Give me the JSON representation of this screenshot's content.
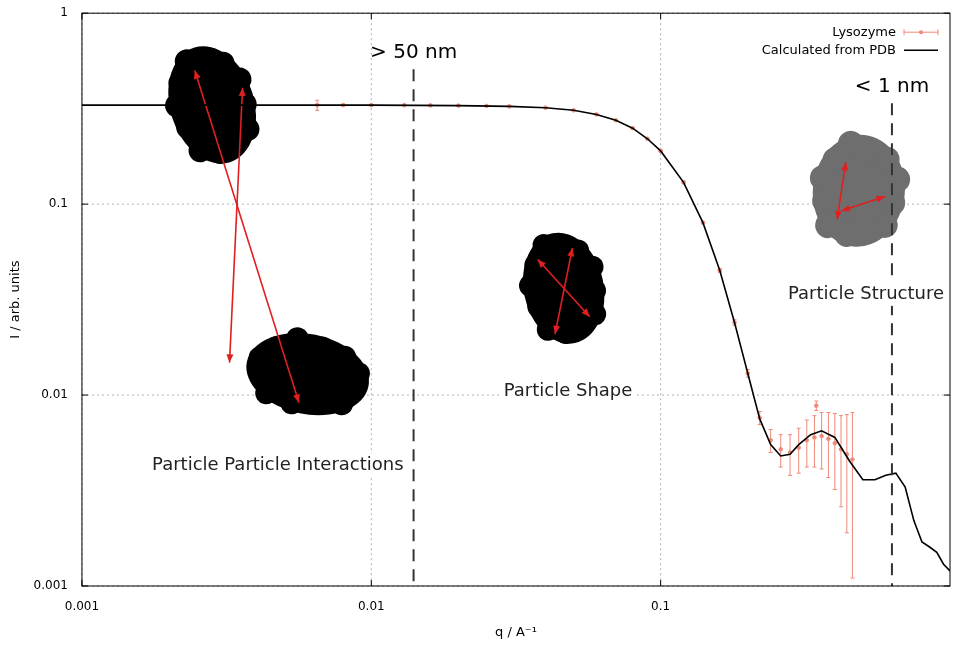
{
  "chart_data": {
    "type": "line",
    "log": true,
    "grid": true,
    "legend": "top-right",
    "x_label": "q / A⁻¹",
    "y_label": "I / arb. units",
    "xlim": [
      0.001,
      1
    ],
    "xticks": [
      0.001,
      0.01,
      0.1
    ],
    "ylim": [
      0.001,
      1
    ],
    "yticks": [
      0.001,
      0.01,
      0.1,
      1
    ],
    "series": [
      {
        "name": "Lysozyme",
        "type": "scatter",
        "color": "#f08878",
        "x": [
          0.0065,
          0.008,
          0.01,
          0.013,
          0.016,
          0.02,
          0.025,
          0.03,
          0.04,
          0.05,
          0.06,
          0.07,
          0.08,
          0.09,
          0.1,
          0.12,
          0.14,
          0.16,
          0.18,
          0.2,
          0.22,
          0.24,
          0.26,
          0.28,
          0.3,
          0.32,
          0.34,
          0.345,
          0.36,
          0.38,
          0.4,
          0.42,
          0.44,
          0.46
        ],
        "values": [
          0.33,
          0.33,
          0.33,
          0.33,
          0.329,
          0.328,
          0.327,
          0.325,
          0.32,
          0.31,
          0.295,
          0.275,
          0.25,
          0.22,
          0.19,
          0.13,
          0.08,
          0.045,
          0.024,
          0.013,
          0.0076,
          0.0058,
          0.0052,
          0.005,
          0.0053,
          0.0058,
          0.006,
          0.0088,
          0.0061,
          0.0059,
          0.0056,
          0.0052,
          0.0049,
          0.0046
        ],
        "errors": [
          0.02,
          0.004,
          0.003,
          0.002,
          0.002,
          0.002,
          0.002,
          0.002,
          0.002,
          0.002,
          0.002,
          0.002,
          0.002,
          0.002,
          0.002,
          0.002,
          0.001,
          0.001,
          0.0008,
          0.0006,
          0.0006,
          0.0008,
          0.001,
          0.0012,
          0.0014,
          0.0016,
          0.0018,
          0.0005,
          0.002,
          0.0022,
          0.0024,
          0.0026,
          0.003,
          0.0035
        ]
      },
      {
        "name": "Calculated from PDB",
        "type": "line",
        "color": "#000000",
        "x": [
          0.001,
          0.01,
          0.02,
          0.03,
          0.04,
          0.05,
          0.06,
          0.07,
          0.08,
          0.09,
          0.1,
          0.12,
          0.14,
          0.16,
          0.18,
          0.2,
          0.22,
          0.24,
          0.26,
          0.28,
          0.3,
          0.33,
          0.36,
          0.4,
          0.45,
          0.5,
          0.55,
          0.6,
          0.65,
          0.7,
          0.75,
          0.8,
          0.85,
          0.9,
          0.95,
          1.0
        ],
        "values": [
          0.33,
          0.33,
          0.328,
          0.325,
          0.32,
          0.31,
          0.295,
          0.275,
          0.25,
          0.22,
          0.19,
          0.13,
          0.08,
          0.045,
          0.024,
          0.013,
          0.0075,
          0.0055,
          0.0048,
          0.0049,
          0.0055,
          0.0062,
          0.0065,
          0.006,
          0.0045,
          0.0036,
          0.0036,
          0.0038,
          0.0039,
          0.0033,
          0.0022,
          0.0017,
          0.0016,
          0.0015,
          0.0013,
          0.0012
        ]
      }
    ],
    "annotations": [
      {
        "text": "> 50 nm",
        "x": 0.014
      },
      {
        "text": "< 1 nm",
        "x": 0.63
      }
    ],
    "region_labels": [
      "Particle Particle Interactions",
      "Particle Shape",
      "Particle Structure"
    ]
  }
}
